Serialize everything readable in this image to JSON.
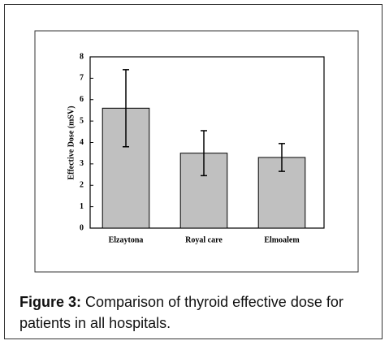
{
  "chart_data": {
    "type": "bar",
    "y_label": "Effective Dose (mSV)",
    "categories": [
      "Elzaytona",
      "Royal care",
      "Elmoalem"
    ],
    "values": [
      5.6,
      3.5,
      3.3
    ],
    "errors": [
      1.8,
      1.05,
      0.65
    ],
    "color": "#c0c0c0",
    "ylim": [
      0,
      8
    ],
    "yticks": [
      0,
      1,
      2,
      3,
      4,
      5,
      6,
      7,
      8
    ]
  },
  "caption": {
    "label": "Figure 3:",
    "text": "Comparison of thyroid effective dose for patients in all hospitals."
  }
}
